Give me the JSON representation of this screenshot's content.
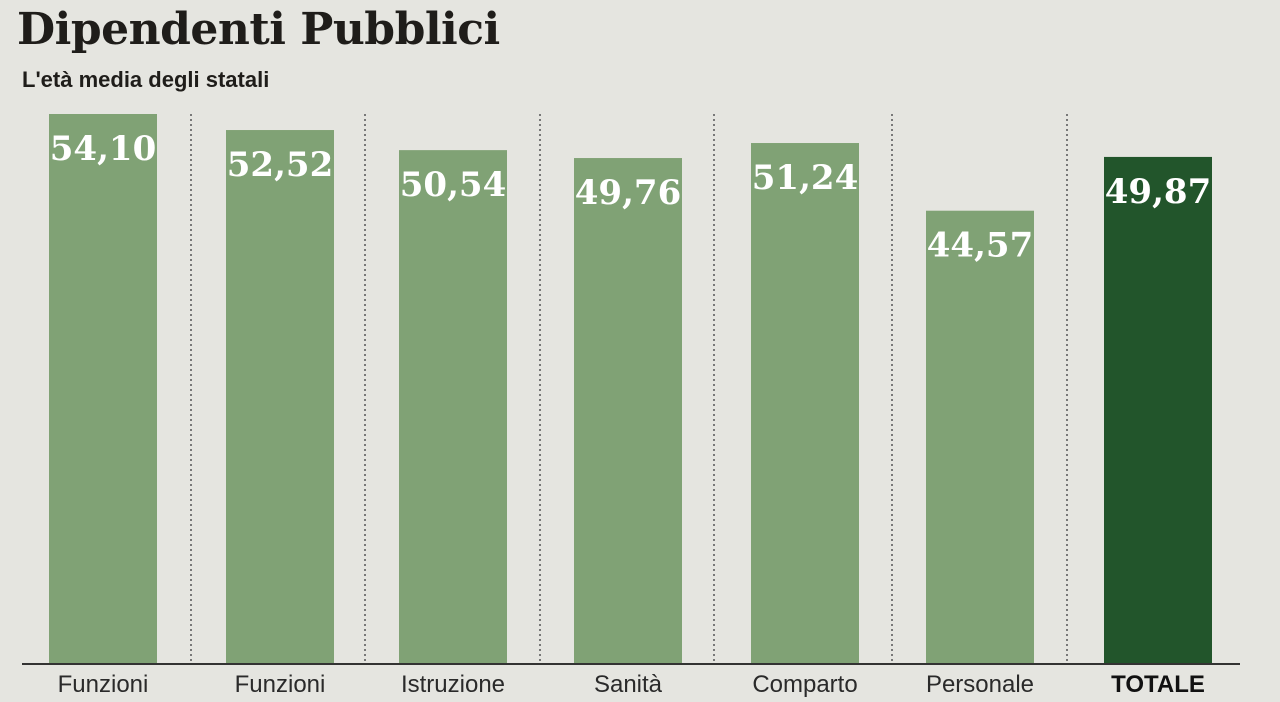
{
  "header": {
    "title": "Dipendenti Pubblici",
    "subtitle": "L'età media degli statali"
  },
  "colors": {
    "background": "#e5e5e0",
    "bar": "#80a275",
    "bar_highlight": "#22552b",
    "value_label": "#ffffff",
    "divider": "#555555",
    "baseline": "#333333"
  },
  "chart_data": {
    "type": "bar",
    "title": "Dipendenti Pubblici",
    "subtitle": "L'età media degli statali",
    "categories": [
      "Funzioni",
      "Funzioni",
      "Istruzione",
      "Sanità",
      "Comparto",
      "Personale",
      "TOTALE"
    ],
    "values": [
      54.1,
      52.52,
      50.54,
      49.76,
      51.24,
      44.57,
      49.87
    ],
    "value_labels": [
      "54,10",
      "52,52",
      "50,54",
      "49,76",
      "51,24",
      "44,57",
      "49,87"
    ],
    "highlight_category": "TOTALE",
    "ylim": [
      0,
      54.1
    ],
    "grid": false,
    "dividers": "dotted vertical"
  }
}
